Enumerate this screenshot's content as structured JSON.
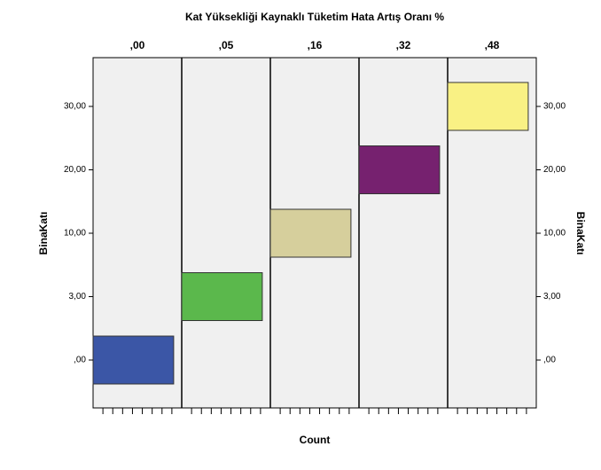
{
  "chart_data": {
    "type": "panel-bar",
    "title": "Kat Yüksekliği Kaynaklı Tüketim Hata Artış Oranı %",
    "categories": [
      ",00",
      "3,00",
      "10,00",
      "20,00",
      "30,00"
    ],
    "ylabel": "BinaKatı",
    "xlabel": "Count",
    "xlim": [
      0,
      1.1
    ],
    "series": [
      {
        "name": ",00",
        "color": "#3b56a6",
        "values": [
          1,
          null,
          null,
          null,
          null
        ]
      },
      {
        "name": ",05",
        "color": "#5bb84c",
        "values": [
          null,
          1,
          null,
          null,
          null
        ]
      },
      {
        "name": ",16",
        "color": "#d6cf9c",
        "values": [
          null,
          null,
          1,
          null,
          null
        ]
      },
      {
        "name": ",32",
        "color": "#76216f",
        "values": [
          null,
          null,
          null,
          1,
          null
        ]
      },
      {
        "name": ",48",
        "color": "#f9f184",
        "values": [
          null,
          null,
          null,
          null,
          1
        ]
      }
    ]
  }
}
